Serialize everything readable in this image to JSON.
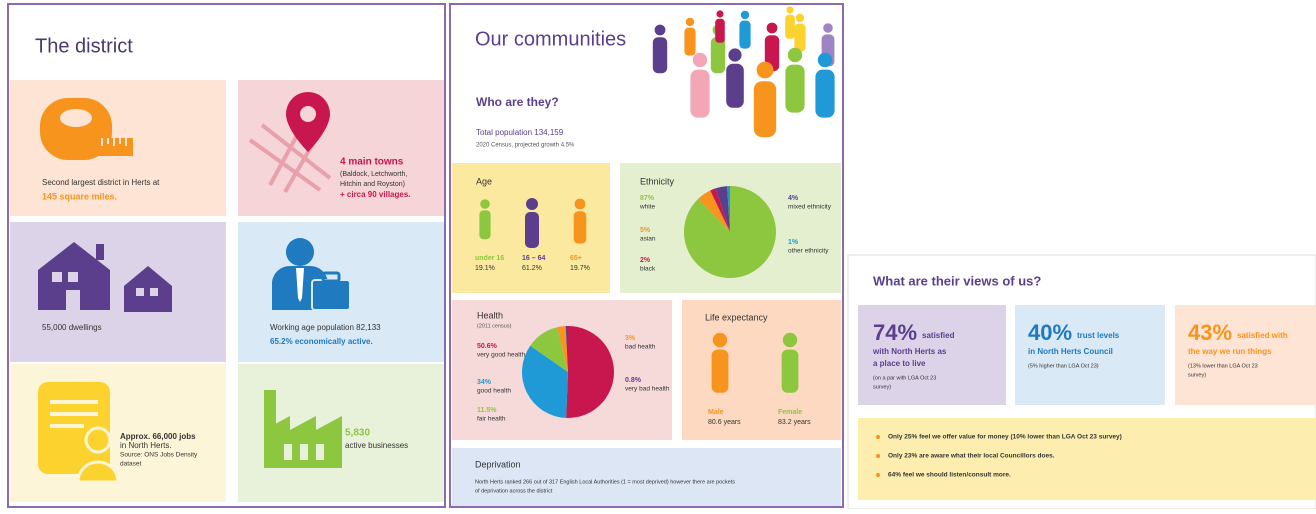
{
  "district": {
    "title": "The district",
    "area": {
      "line1": "Second largest district in Herts at",
      "line2": "145 square miles."
    },
    "towns": {
      "headline": "4 main towns",
      "lines": [
        "(Baldock, Letchworth,",
        "Hitchin and Royston)"
      ],
      "villages": "+ circa 90 villages."
    },
    "dwellings": "55,000 dwellings",
    "workforce": {
      "line1": "Working age population 82,133",
      "line2": "65.2% economically active."
    },
    "jobs": {
      "lines": [
        "Approx. 66,000 jobs",
        "in North Herts.",
        "Source: ONS Jobs Density",
        "dataset"
      ]
    },
    "businesses": {
      "number": "5,830",
      "label": "active businesses"
    }
  },
  "communities": {
    "title": "Our communities",
    "subtitle": "Who are they?",
    "population": "Total population 134,159",
    "population_note": "2020 Census, projected growth 4.5%",
    "age": {
      "title": "Age",
      "groups": [
        {
          "name": "under 16",
          "share": "19.1%"
        },
        {
          "name": "16 – 64",
          "share": "61.2%"
        },
        {
          "name": "65+",
          "share": "19.7%"
        }
      ]
    },
    "ethnicity": {
      "title": "Ethnicity",
      "slices": [
        {
          "value": 87,
          "label": "87%",
          "name": "white",
          "color": "#8dc63f"
        },
        {
          "value": 5,
          "label": "5%",
          "name": "asian",
          "color": "#f7941d"
        },
        {
          "value": 2,
          "label": "2%",
          "name": "black",
          "color": "#c8174f"
        },
        {
          "value": 4,
          "label": "4%",
          "name": "mixed ethnicity",
          "color": "#5b3f8c"
        },
        {
          "value": 1,
          "label": "1%",
          "name": "other ethnicity",
          "color": "#1f9ad6"
        }
      ]
    },
    "health": {
      "title": "Health",
      "note": "(2011 census)",
      "slices": [
        {
          "value": 50.6,
          "label": "50.6%",
          "name": "very good health",
          "color": "#c8174f"
        },
        {
          "value": 34,
          "label": "34%",
          "name": "good health",
          "color": "#1f9ad6"
        },
        {
          "value": 11.5,
          "label": "11.5%",
          "name": "fair health",
          "color": "#8dc63f"
        },
        {
          "value": 3,
          "label": "3%",
          "name": "bad health",
          "color": "#f7941d"
        },
        {
          "value": 0.8,
          "label": "0.8%",
          "name": "very bad health",
          "color": "#5b3f8c"
        }
      ]
    },
    "life_expectancy": {
      "title": "Life expectancy",
      "groups": [
        {
          "name": "Male",
          "years": "80.6 years"
        },
        {
          "name": "Female",
          "years": "83.2 years"
        }
      ]
    },
    "deprivation": {
      "title": "Deprivation",
      "lines": [
        "North Herts ranked 266 out of 317 English Local Authorities (1 = most deprived) however there are pockets",
        "of deprivation across the district"
      ]
    }
  },
  "views": {
    "title": "What are their views of us?",
    "cards": [
      {
        "figure": "74%",
        "first": "satisfied",
        "lines": [
          "with North Herts as",
          "a place to live"
        ],
        "note": [
          "(on a par with LGA Oct 23",
          "survey)"
        ]
      },
      {
        "figure": "40%",
        "first": "trust levels",
        "lines": [
          "in North Herts Council"
        ],
        "note": [
          "(5% higher than LGA Oct 23)"
        ]
      },
      {
        "figure": "43%",
        "first": "satisfied with",
        "lines": [
          "the way we run things"
        ],
        "note": [
          "(13% lower than LGA Oct 23",
          "survey)"
        ]
      }
    ],
    "bullets": [
      "Only 25% feel we offer value for money (10% lower than LGA Oct 23 survey)",
      "Only 23% are aware what their local Councillors does.",
      "64% feel we should listen/consult more."
    ]
  }
}
